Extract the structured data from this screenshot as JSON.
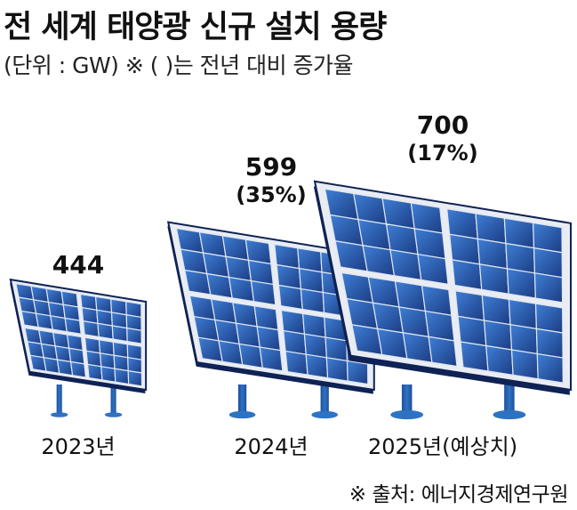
{
  "title": "전 세계 태양광 신규 설치 용량",
  "subtitle": "(단위 : GW) ※ (   )는 전년 대비 증가율",
  "source": "※ 출처: 에너지경제연구원",
  "colors": {
    "panel_dark": "#1b3c83",
    "panel_light": "#3f7fd6",
    "frame": "#e9edf3",
    "post": "#2e72c2",
    "shadow": "#0f2255"
  },
  "chart_data": {
    "type": "bar",
    "categories": [
      "2023년",
      "2024년",
      "2025년(예상치)"
    ],
    "values": [
      444,
      599,
      700
    ],
    "growth_labels": [
      "",
      "(35%)",
      "(17%)"
    ],
    "unit": "GW"
  }
}
